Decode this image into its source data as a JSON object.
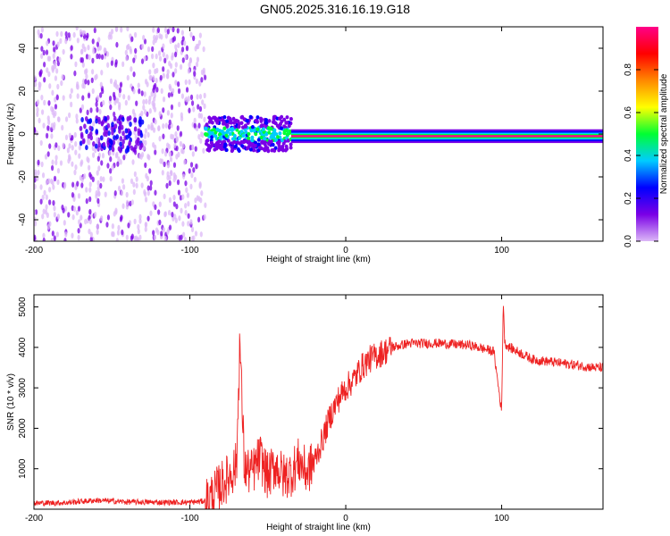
{
  "title": "GN05.2025.316.16.19.G18",
  "chart_data": [
    {
      "type": "heatmap",
      "title": "GN05.2025.316.16.19.G18",
      "xlabel": "Height of straight line (km)",
      "ylabel": "Frequency (Hz)",
      "xlim": [
        -200,
        165
      ],
      "ylim": [
        -50,
        50
      ],
      "xticks": [
        -200,
        -100,
        0,
        100
      ],
      "yticks": [
        -40,
        -20,
        0,
        20,
        40
      ],
      "grid": false,
      "colorbar": {
        "label": "Normalized spectral amplitude",
        "range": [
          0,
          1
        ],
        "ticks": [
          0.0,
          0.2,
          0.4,
          0.6,
          0.8
        ],
        "colormap": [
          "#dcb8f7",
          "#7a00e6",
          "#0000ff",
          "#00ccff",
          "#00ff33",
          "#ffff00",
          "#ff8800",
          "#ff0000",
          "#ff0088"
        ]
      },
      "regions": [
        {
          "x": [
            -200,
            -90
          ],
          "freq_spread": [
            -50,
            50
          ],
          "amplitude": 0.1,
          "description_level": "broadband noise"
        },
        {
          "x": [
            -90,
            -35
          ],
          "freq_center": 0,
          "freq_halfwidth": 8,
          "amplitude": 0.35
        },
        {
          "x": [
            -35,
            165
          ],
          "freq_center": -1,
          "freq_halfwidth": 3,
          "amplitude": 0.95
        }
      ]
    },
    {
      "type": "line",
      "xlabel": "Height of straight line (km)",
      "ylabel": "SNR (10 * v/v)",
      "xlim": [
        -200,
        165
      ],
      "ylim": [
        0,
        5300
      ],
      "xticks": [
        -200,
        -100,
        0,
        100
      ],
      "yticks": [
        1000,
        2000,
        3000,
        4000,
        5000
      ],
      "grid": false,
      "color": "#ee2222",
      "series": [
        {
          "x": [
            -200,
            -180,
            -160,
            -140,
            -120,
            -100,
            -90,
            -85,
            -80,
            -75,
            -70,
            -68,
            -65,
            -60,
            -55,
            -50,
            -45,
            -40,
            -35,
            -30,
            -25,
            -20,
            -15,
            -10,
            -5,
            0,
            5,
            10,
            15,
            20,
            30,
            40,
            60,
            80,
            95,
            100,
            101,
            102,
            105,
            110,
            120,
            140,
            160,
            165
          ],
          "y": [
            150,
            160,
            220,
            180,
            170,
            170,
            200,
            350,
            600,
            800,
            1100,
            4200,
            1000,
            900,
            1300,
            800,
            1100,
            800,
            900,
            1200,
            900,
            1200,
            1700,
            2300,
            2700,
            3000,
            3200,
            3500,
            3700,
            3800,
            4000,
            4100,
            4100,
            4050,
            3900,
            2400,
            5200,
            4100,
            4000,
            3900,
            3700,
            3600,
            3500,
            3500
          ]
        }
      ]
    }
  ]
}
